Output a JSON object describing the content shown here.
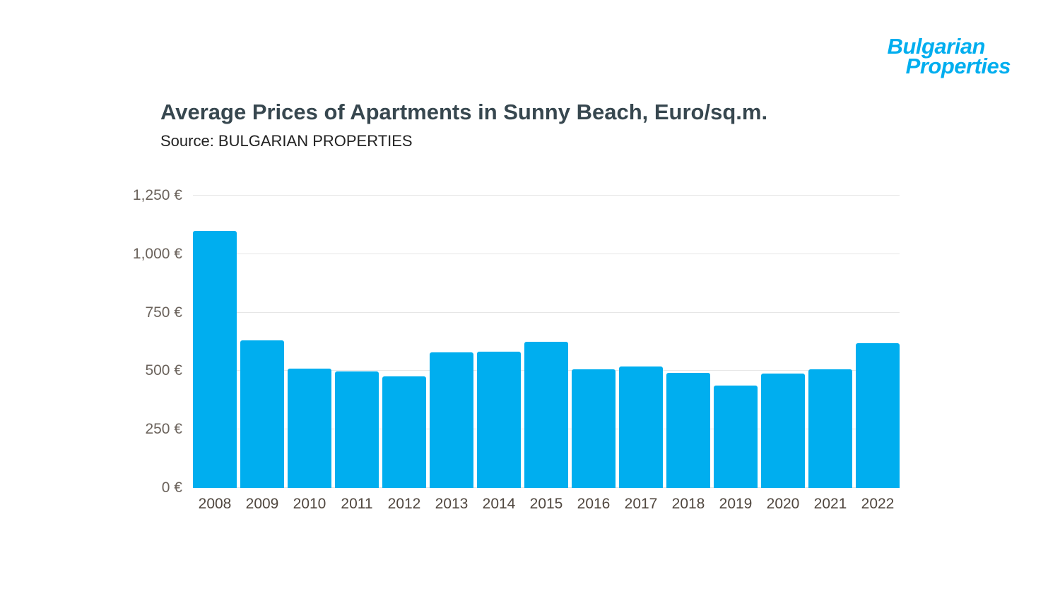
{
  "logo": {
    "line1": "Bulgarian",
    "line2": "Properties",
    "color": "#00aeef"
  },
  "chart_data": {
    "type": "bar",
    "title": "Average Prices of Apartments in Sunny Beach, Euro/sq.m.",
    "subtitle": "Source: BULGARIAN PROPERTIES",
    "categories": [
      "2008",
      "2009",
      "2010",
      "2011",
      "2012",
      "2013",
      "2014",
      "2015",
      "2016",
      "2017",
      "2018",
      "2019",
      "2020",
      "2021",
      "2022"
    ],
    "values": [
      1100,
      630,
      510,
      497,
      478,
      580,
      582,
      625,
      507,
      520,
      492,
      437,
      490,
      508,
      620
    ],
    "xlabel": "",
    "ylabel": "Euro/sq.m.",
    "ylim": [
      0,
      1250
    ],
    "yticks": [
      0,
      250,
      500,
      750,
      1000,
      1250
    ],
    "ytick_labels": [
      "0 €",
      "250 €",
      "500 €",
      "750 €",
      "1,000 €",
      "1,250 €"
    ],
    "bar_color": "#00aeef",
    "grid": "horizontal",
    "legend": "none"
  }
}
